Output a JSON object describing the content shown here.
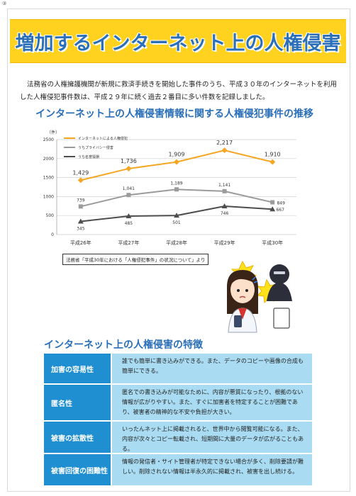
{
  "page_number": "③",
  "title": "増加するインターネット上の人権侵害",
  "intro": "法務省の人権擁護機関が新規に救済手続きを開始した事件のうち、平成３０年のインターネットを利用した人権侵犯事件数は、平成２９年に続く過去２番目に多い件数を記録しました。",
  "chart_title": "インターネット上の人権侵害情報に関する人権侵犯事件の推移",
  "chart_data": {
    "type": "line",
    "unit_label": "（件）",
    "categories": [
      "平成26年",
      "平成27年",
      "平成28年",
      "平成29年",
      "平成30年"
    ],
    "ylim": [
      0,
      2500
    ],
    "yticks": [
      "0",
      "500",
      "1000",
      "1500",
      "2000",
      "2500"
    ],
    "grid": true,
    "legend_position": "top-left",
    "series": [
      {
        "name": "インターネットによる人権侵犯",
        "color": "#f5a623",
        "marker": "diamond",
        "values": [
          1429,
          1736,
          1909,
          2217,
          1910
        ],
        "labels": [
          "1,429",
          "1,736",
          "1,909",
          "2,217",
          "1,910"
        ]
      },
      {
        "name": "うちプライバシー侵害",
        "color": "#9b9b9b",
        "marker": "square",
        "values": [
          739,
          1041,
          1189,
          1141,
          849
        ],
        "labels": [
          "739",
          "1,041",
          "1,189",
          "1,141",
          "849"
        ]
      },
      {
        "name": "うち名誉毀損",
        "color": "#4d4d4d",
        "marker": "triangle",
        "values": [
          345,
          485,
          501,
          746,
          667
        ],
        "labels": [
          "345",
          "485",
          "501",
          "746",
          "667"
        ]
      }
    ]
  },
  "source": "法務省「平成30年における「人権侵犯事件」の状況について」より",
  "features_title": "インターネット上の人権侵害の特徴",
  "features": [
    {
      "head": "加害の容易性",
      "desc": "誰でも簡単に書き込みができる。また、データのコピーや画像の合成も簡単にできる。"
    },
    {
      "head": "匿名性",
      "desc": "匿名での書き込みが可能なために、内容が悪質になったり、根拠のない情報が広がりやすい。また、すぐに加害者を特定することが困難であり、被害者の精神的な不安や負担が大きい。"
    },
    {
      "head": "被害の拡散性",
      "desc": "いったんネット上に掲載されると、世界中から閲覧可能になる。また、内容が次々とコピー転載され、短期間に大量のデータが広がることもある。"
    },
    {
      "head": "被害回復の困難性",
      "desc": "情報の発信者・サイト管理者が特定できない場合が多く、削除要請が難しい。削除されない情報は半永久的に掲載され、被害を出し続ける。"
    }
  ]
}
